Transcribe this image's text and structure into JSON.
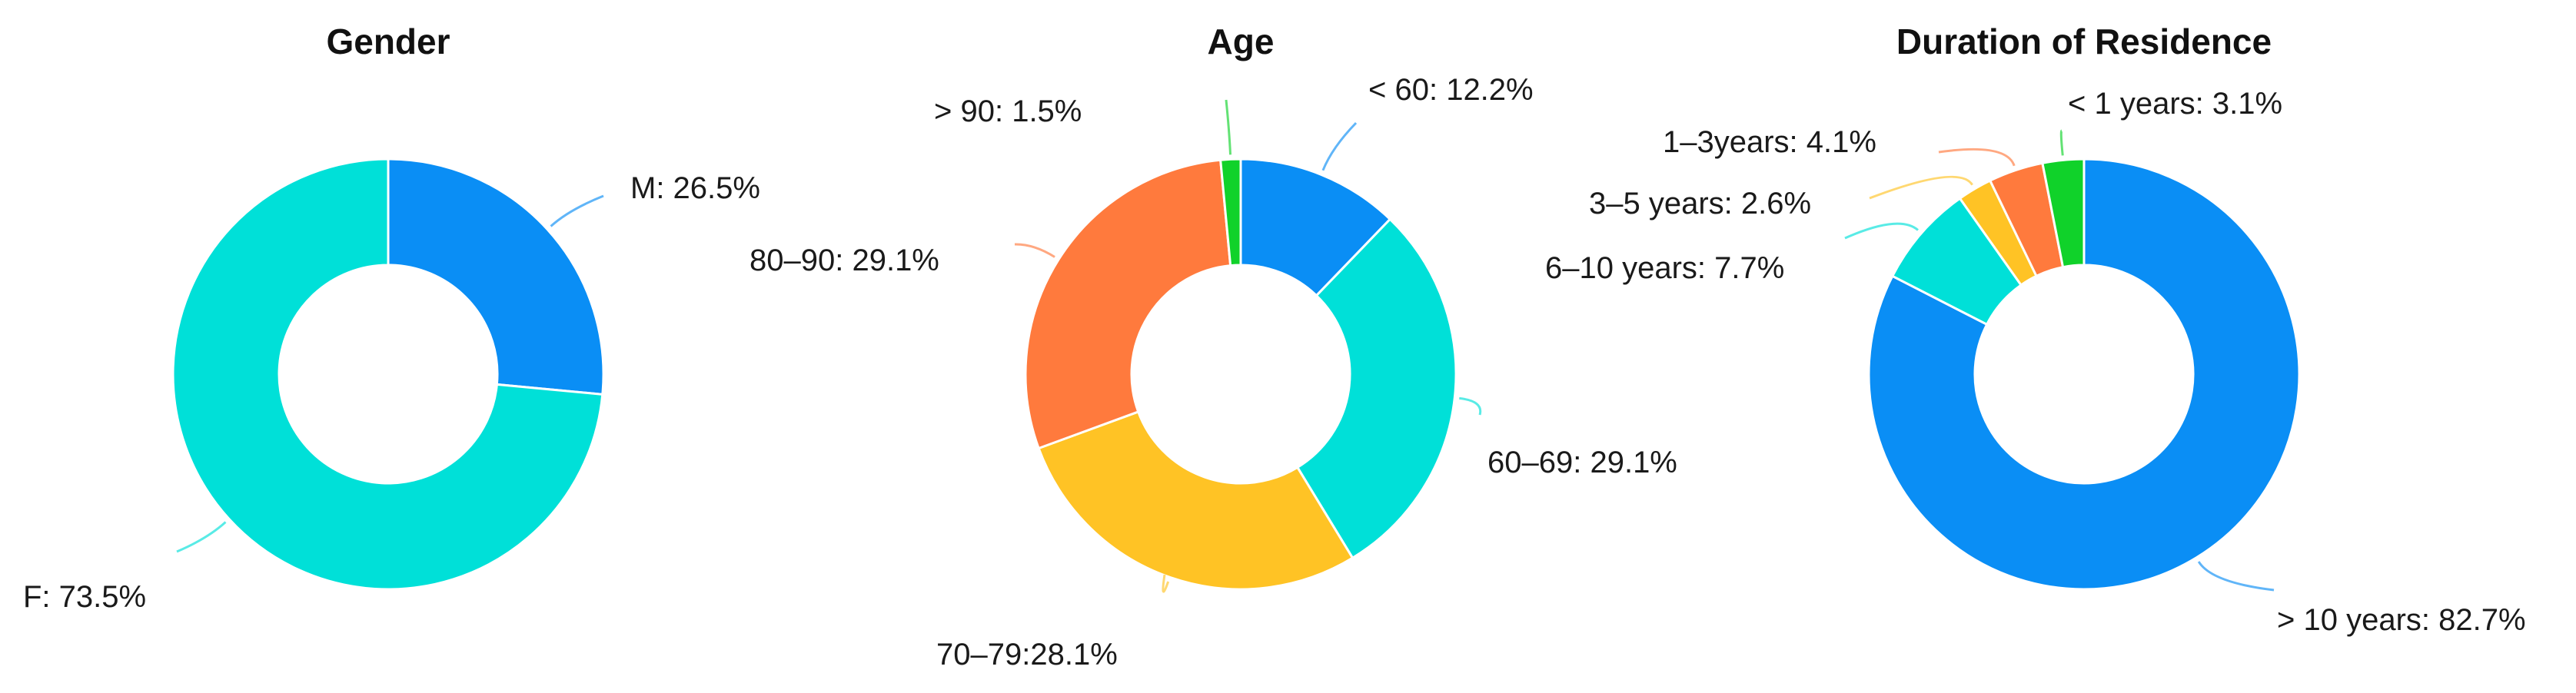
{
  "chart_data": [
    {
      "type": "pie",
      "title": "Gender",
      "donut": true,
      "slices": [
        {
          "label": "M: 26.5%",
          "value": 26.5,
          "color": "#0a8ef5"
        },
        {
          "label": "F: 73.5%",
          "value": 73.5,
          "color": "#00e0d8"
        }
      ]
    },
    {
      "type": "pie",
      "title": "Age",
      "donut": true,
      "slices": [
        {
          "label": "< 60: 12.2%",
          "value": 12.2,
          "color": "#0a8ef5"
        },
        {
          "label": "60–69: 29.1%",
          "value": 29.1,
          "color": "#00e0d8"
        },
        {
          "label": "70–79:28.1%",
          "value": 28.1,
          "color": "#ffc325"
        },
        {
          "label": "80–90: 29.1%",
          "value": 29.1,
          "color": "#ff7a3d"
        },
        {
          "label": "> 90: 1.5%",
          "value": 1.5,
          "color": "#10d22a"
        }
      ]
    },
    {
      "type": "pie",
      "title": "Duration of Residence",
      "donut": true,
      "slices": [
        {
          "label": "> 10 years: 82.7%",
          "value": 82.7,
          "color": "#0a8ef5"
        },
        {
          "label": "6–10 years: 7.7%",
          "value": 7.7,
          "color": "#00e0d8"
        },
        {
          "label": "3–5 years: 2.6%",
          "value": 2.6,
          "color": "#ffc325"
        },
        {
          "label": "1–3years: 4.1%",
          "value": 4.1,
          "color": "#ff7a3d"
        },
        {
          "label": "< 1 years: 3.1%",
          "value": 3.1,
          "color": "#10d22a"
        }
      ]
    }
  ]
}
